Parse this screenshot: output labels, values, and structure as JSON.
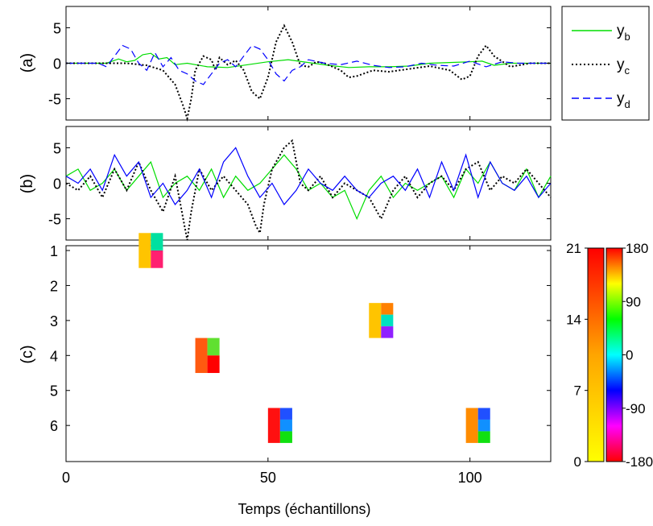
{
  "chart_data": [
    {
      "panel_label": "(a)",
      "type": "line",
      "xlim": [
        0,
        120
      ],
      "ylim": [
        -8,
        8
      ],
      "yticks": [
        "-5",
        "0",
        "5"
      ],
      "legend": {
        "placement": "outside-right",
        "entries": [
          {
            "label": "y",
            "sub": "b",
            "color": "#00dd00",
            "style": "solid"
          },
          {
            "label": "y",
            "sub": "c",
            "color": "#000000",
            "style": "dotted"
          },
          {
            "label": "y",
            "sub": "d",
            "color": "#0000ff",
            "style": "dashed"
          }
        ]
      },
      "series": [
        {
          "name": "y_b",
          "color": "#00dd00",
          "style": "solid",
          "x": [
            0,
            10,
            13,
            15,
            17,
            19,
            21,
            23,
            25,
            27,
            30,
            35,
            40,
            45,
            50,
            55,
            60,
            65,
            70,
            75,
            80,
            85,
            90,
            95,
            100,
            103,
            106,
            110,
            115,
            120
          ],
          "y": [
            0,
            0,
            0.6,
            0.2,
            0.4,
            1.2,
            1.4,
            0.6,
            0.8,
            -0.2,
            0,
            -0.5,
            -0.6,
            -0.2,
            0.2,
            0.5,
            0.1,
            -0.3,
            -0.6,
            -0.5,
            -0.5,
            -0.4,
            0,
            0.1,
            0.2,
            0.3,
            -0.3,
            0,
            0,
            0
          ]
        },
        {
          "name": "y_c",
          "color": "#000000",
          "style": "dotted",
          "x": [
            0,
            10,
            15,
            20,
            24,
            27,
            29,
            30,
            31,
            32,
            34,
            36,
            37,
            38,
            40,
            42,
            44,
            46,
            48,
            50,
            52,
            54,
            56,
            58,
            60,
            62,
            64,
            68,
            70,
            72,
            76,
            80,
            85,
            90,
            95,
            98,
            100,
            102,
            104,
            106,
            110,
            115,
            120
          ],
          "y": [
            0,
            0,
            0,
            -0.3,
            -1,
            -3,
            -6,
            -7.8,
            -5,
            -1,
            1,
            0.5,
            -1,
            0.8,
            -0.2,
            0.4,
            -1,
            -4,
            -5,
            -2,
            3,
            5.3,
            3,
            -0.3,
            -0.5,
            0.2,
            0,
            -1,
            -2,
            -1.8,
            -1,
            -1.2,
            -0.8,
            -0.4,
            -1,
            -2.3,
            -1.8,
            1,
            2.5,
            1,
            -0.5,
            0,
            0
          ]
        },
        {
          "name": "y_d",
          "color": "#0000ff",
          "style": "dashed",
          "x": [
            0,
            8,
            10,
            12,
            14,
            16,
            18,
            20,
            22,
            24,
            26,
            28,
            30,
            32,
            34,
            36,
            38,
            40,
            42,
            44,
            46,
            48,
            50,
            52,
            54,
            56,
            58,
            60,
            64,
            68,
            72,
            76,
            80,
            84,
            88,
            92,
            96,
            100,
            104,
            108,
            112,
            116,
            120
          ],
          "y": [
            0,
            0,
            -0.5,
            1,
            2.5,
            2,
            0,
            -1,
            1.5,
            -0.5,
            0.8,
            -1,
            -1.5,
            -2.5,
            -3,
            -1.5,
            0,
            0.5,
            -0.5,
            1,
            2.5,
            2,
            0.5,
            -1.5,
            -2.5,
            -1,
            -0.5,
            0.5,
            0,
            -0.2,
            0.3,
            -0.3,
            -0.6,
            -0.5,
            0,
            -0.3,
            -0.4,
            0.3,
            -0.5,
            0.2,
            0,
            0,
            0
          ]
        }
      ]
    },
    {
      "panel_label": "(b)",
      "type": "line",
      "xlim": [
        0,
        120
      ],
      "ylim": [
        -8,
        8
      ],
      "yticks": [
        "-5",
        "0",
        "5"
      ],
      "series": [
        {
          "name": "y_b",
          "color": "#00dd00",
          "style": "solid",
          "x": [
            0,
            3,
            6,
            9,
            12,
            15,
            18,
            21,
            24,
            27,
            30,
            33,
            36,
            39,
            42,
            45,
            48,
            51,
            54,
            57,
            60,
            63,
            66,
            69,
            72,
            75,
            78,
            81,
            84,
            87,
            90,
            93,
            96,
            99,
            102,
            105,
            108,
            111,
            114,
            117,
            120
          ],
          "y": [
            1,
            2,
            -1,
            0,
            2,
            -1,
            1,
            3,
            -2,
            0,
            1,
            -1,
            2,
            -2,
            1,
            -1,
            0,
            2,
            4,
            2,
            -1,
            0,
            -2,
            -1,
            -5,
            -1,
            1,
            -2,
            0,
            -1,
            0,
            1,
            -2,
            2,
            0,
            3,
            0,
            -1,
            2,
            -2,
            1
          ]
        },
        {
          "name": "y_c",
          "color": "#000000",
          "style": "dotted",
          "x": [
            0,
            3,
            6,
            9,
            12,
            15,
            18,
            21,
            24,
            27,
            29,
            30,
            31,
            33,
            36,
            39,
            42,
            45,
            47,
            48,
            49,
            51,
            54,
            56,
            58,
            60,
            63,
            66,
            69,
            72,
            75,
            78,
            81,
            84,
            87,
            90,
            93,
            96,
            99,
            102,
            105,
            108,
            111,
            114,
            117,
            120
          ],
          "y": [
            0,
            -1,
            1,
            -2,
            2,
            -1,
            3,
            -1,
            -4,
            1,
            -5,
            -8,
            -4,
            2,
            -1,
            1,
            -1,
            -3,
            -6,
            -7,
            -3,
            2,
            5,
            6,
            0,
            -1,
            1,
            -2,
            0,
            -1,
            -2,
            -5,
            -1,
            1,
            -2,
            0,
            1,
            -1,
            2,
            3,
            -1,
            1,
            0,
            2,
            0,
            -2
          ]
        },
        {
          "name": "y_d",
          "color": "#0000ff",
          "style": "solid",
          "x": [
            0,
            3,
            6,
            9,
            12,
            15,
            18,
            21,
            24,
            27,
            30,
            33,
            36,
            39,
            42,
            45,
            48,
            51,
            54,
            57,
            60,
            63,
            66,
            69,
            72,
            75,
            78,
            81,
            84,
            87,
            90,
            93,
            96,
            99,
            102,
            105,
            108,
            111,
            114,
            117,
            120
          ],
          "y": [
            1,
            0,
            2,
            -1,
            4,
            1,
            3,
            -2,
            0,
            -3,
            -1,
            2,
            -2,
            3,
            5,
            1,
            -2,
            0,
            -3,
            -1,
            2,
            0,
            -1,
            1,
            -1,
            -2,
            0,
            1,
            -1,
            2,
            -2,
            3,
            -1,
            4,
            -2,
            3,
            0,
            -1,
            1,
            -2,
            0
          ]
        }
      ]
    },
    {
      "panel_label": "(c)",
      "type": "heatmap",
      "xlim": [
        0,
        120
      ],
      "xticks": [
        "0",
        "50",
        "100"
      ],
      "xlabel": "Temps (échantillons)",
      "yticks": [
        "1",
        "2",
        "3",
        "4",
        "5",
        "6"
      ],
      "colorbar_left": {
        "ticks": [
          "0",
          "7",
          "14",
          "21"
        ],
        "range": [
          0,
          21
        ],
        "colors": [
          "#ffff00",
          "#ffa500",
          "#ff0000"
        ]
      },
      "colorbar_right": {
        "ticks": [
          "-180",
          "-90",
          "0",
          "90",
          "180"
        ],
        "range": [
          -180,
          180
        ],
        "colors": [
          "#ff0000",
          "#ff00ff",
          "#0000ff",
          "#00ffff",
          "#00ff00",
          "#ffff00",
          "#ff0000"
        ]
      },
      "cells": [
        {
          "x": 18,
          "row": 1,
          "color": "#ffc400"
        },
        {
          "x": 21,
          "row": 1,
          "color": "#00e0a0",
          "half": "top"
        },
        {
          "x": 21,
          "row": 1,
          "color": "#ff2070",
          "half": "bottom"
        },
        {
          "x": 32,
          "row": 4,
          "color": "#ff5a10"
        },
        {
          "x": 35,
          "row": 4,
          "color": "#60e030",
          "half": "top"
        },
        {
          "x": 35,
          "row": 4,
          "color": "#ff0000",
          "half": "bottom"
        },
        {
          "x": 50,
          "row": 6,
          "color": "#ff1010"
        },
        {
          "x": 53,
          "row": 6,
          "color": "#2050ff",
          "third": 0
        },
        {
          "x": 53,
          "row": 6,
          "color": "#1090ff",
          "third": 1
        },
        {
          "x": 53,
          "row": 6,
          "color": "#10e010",
          "third": 2
        },
        {
          "x": 75,
          "row": 3,
          "color": "#ffc400"
        },
        {
          "x": 78,
          "row": 3,
          "color": "#ff8000",
          "third": 0
        },
        {
          "x": 78,
          "row": 3,
          "color": "#00e0c0",
          "third": 1
        },
        {
          "x": 78,
          "row": 3,
          "color": "#9020ff",
          "third": 2
        },
        {
          "x": 99,
          "row": 6,
          "color": "#ff8c00"
        },
        {
          "x": 102,
          "row": 6,
          "color": "#2050ff",
          "third": 0
        },
        {
          "x": 102,
          "row": 6,
          "color": "#1090ff",
          "third": 1
        },
        {
          "x": 102,
          "row": 6,
          "color": "#10e010",
          "third": 2
        }
      ]
    }
  ]
}
